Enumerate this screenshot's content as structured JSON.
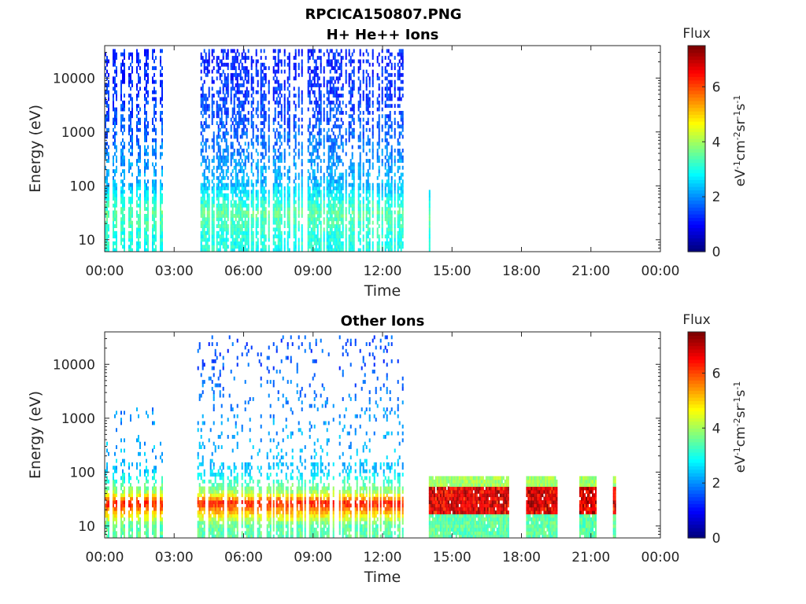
{
  "figure_title": "RPCICA150807.PNG",
  "colors": {
    "axis": "#262626",
    "background": "#ffffff",
    "colormap": "jet"
  },
  "chart_data": [
    {
      "type": "heatmap",
      "title": "H+ He++ Ions",
      "xlabel": "Time",
      "ylabel": "Energy (eV)",
      "x_ticks": [
        "00:00",
        "03:00",
        "06:00",
        "09:00",
        "12:00",
        "15:00",
        "18:00",
        "21:00",
        "00:00"
      ],
      "x_range_hours": [
        0,
        24
      ],
      "y_scale": "log",
      "y_ticks": [
        "10",
        "100",
        "1000",
        "10000"
      ],
      "ylim": [
        6,
        40000
      ],
      "colorbar": {
        "title": "Flux",
        "label": "eV-1cm-2sr-1s-1",
        "label_sup": [
          "-1",
          "-2",
          "-1",
          "-1"
        ],
        "label_base": [
          "eV",
          "cm",
          "sr",
          "s"
        ],
        "ticks": [
          "0",
          "2",
          "4",
          "6"
        ],
        "range": [
          0,
          7.5
        ]
      },
      "coverage": [
        {
          "start_h": 0.0,
          "end_h": 2.5,
          "pattern": "striped"
        },
        {
          "start_h": 4.0,
          "end_h": 12.9,
          "pattern": "dense"
        },
        {
          "start_h": 14.0,
          "end_h": 14.05,
          "pattern": "spike"
        }
      ],
      "flux_profile": [
        {
          "energy_eV": 10,
          "flux": 3.0
        },
        {
          "energy_eV": 30,
          "flux": 3.5
        },
        {
          "energy_eV": 100,
          "flux": 2.3
        },
        {
          "energy_eV": 1000,
          "flux": 1.6
        },
        {
          "energy_eV": 10000,
          "flux": 1.2
        }
      ]
    },
    {
      "type": "heatmap",
      "title": "Other Ions",
      "xlabel": "Time",
      "ylabel": "Energy (eV)",
      "x_ticks": [
        "00:00",
        "03:00",
        "06:00",
        "09:00",
        "12:00",
        "15:00",
        "18:00",
        "21:00",
        "00:00"
      ],
      "x_range_hours": [
        0,
        24
      ],
      "y_scale": "log",
      "y_ticks": [
        "10",
        "100",
        "1000",
        "10000"
      ],
      "ylim": [
        6,
        40000
      ],
      "colorbar": {
        "title": "Flux",
        "label": "eV-1cm-2sr-1s-1",
        "label_sup": [
          "-1",
          "-2",
          "-1",
          "-1"
        ],
        "label_base": [
          "eV",
          "cm",
          "sr",
          "s"
        ],
        "ticks": [
          "0",
          "2",
          "4",
          "6"
        ],
        "range": [
          0,
          7.5
        ]
      },
      "coverage": [
        {
          "start_h": 0.0,
          "end_h": 2.5,
          "pattern": "striped"
        },
        {
          "start_h": 4.0,
          "end_h": 12.9,
          "pattern": "dense"
        },
        {
          "start_h": 14.0,
          "end_h": 17.4,
          "pattern": "intense"
        },
        {
          "start_h": 18.2,
          "end_h": 19.5,
          "pattern": "intense"
        },
        {
          "start_h": 20.5,
          "end_h": 21.2,
          "pattern": "intense"
        },
        {
          "start_h": 21.95,
          "end_h": 22.05,
          "pattern": "intense"
        }
      ],
      "flux_profile": [
        {
          "energy_eV": 10,
          "flux": 3.5
        },
        {
          "energy_eV": 25,
          "flux": 6.5
        },
        {
          "energy_eV": 40,
          "flux": 4.0
        },
        {
          "energy_eV": 100,
          "flux": 2.4
        },
        {
          "energy_eV": 1000,
          "flux": 2.0
        },
        {
          "energy_eV": 10000,
          "flux": 1.5
        }
      ]
    }
  ]
}
